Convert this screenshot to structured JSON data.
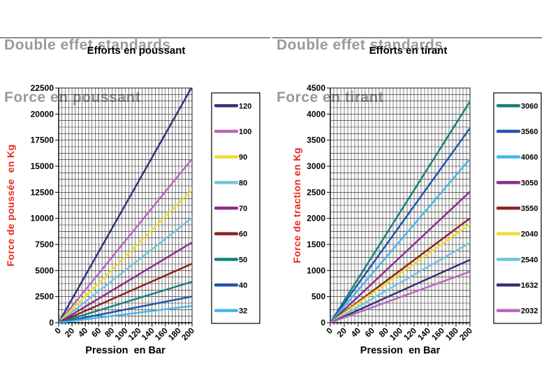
{
  "colors": {
    "header_gray": "#9a9a9a",
    "axis_title_red": "#E8281E",
    "grid": "#1a1a1a",
    "text": "#000000",
    "legend_border": "#000000"
  },
  "panels": [
    {
      "key": "push",
      "header": {
        "line1": "Double effet standards",
        "line2": "Force en poussant"
      },
      "title": "Efforts en poussant"
    },
    {
      "key": "pull",
      "header": {
        "line1": "Double effet standards",
        "line2": "Force en tirant"
      },
      "title": "Efforts en tirant"
    }
  ],
  "chart_data": [
    {
      "type": "line",
      "title": "Efforts en poussant",
      "xlabel": "Pression  en Bar",
      "ylabel": "Force de poussée  en Kg",
      "xlim": [
        0,
        200
      ],
      "ylim": [
        0,
        22500
      ],
      "x_ticks": [
        0,
        20,
        40,
        60,
        80,
        100,
        120,
        140,
        160,
        180,
        200
      ],
      "y_ticks": [
        0,
        2500,
        5000,
        7500,
        10000,
        12500,
        15000,
        17500,
        20000,
        22500
      ],
      "x_minor_step": 5,
      "y_minor_step": 625,
      "grid": true,
      "legend_position": "right",
      "x": [
        0,
        200
      ],
      "series": [
        {
          "name": "120",
          "color": "#333377",
          "values": [
            0,
            22619
          ]
        },
        {
          "name": "100",
          "color": "#BB66BB",
          "values": [
            0,
            15708
          ]
        },
        {
          "name": "90",
          "color": "#EEDD33",
          "values": [
            0,
            12723
          ]
        },
        {
          "name": "80",
          "color": "#6FC8D8",
          "values": [
            0,
            10053
          ]
        },
        {
          "name": "70",
          "color": "#8C2D8C",
          "values": [
            0,
            7697
          ]
        },
        {
          "name": "60",
          "color": "#8C2420",
          "values": [
            0,
            5655
          ]
        },
        {
          "name": "50",
          "color": "#17807A",
          "values": [
            0,
            3927
          ]
        },
        {
          "name": "40",
          "color": "#2255AA",
          "values": [
            0,
            2513
          ]
        },
        {
          "name": "32",
          "color": "#44B8EE",
          "values": [
            0,
            1608
          ]
        }
      ]
    },
    {
      "type": "line",
      "title": "Efforts en tirant",
      "xlabel": "Pression  en Bar",
      "ylabel": "Force de traction en Kg",
      "xlim": [
        0,
        200
      ],
      "ylim": [
        0,
        4500
      ],
      "x_ticks": [
        0,
        20,
        40,
        60,
        80,
        100,
        120,
        140,
        160,
        180,
        200
      ],
      "y_ticks": [
        0,
        500,
        1000,
        1500,
        2000,
        2500,
        3000,
        3500,
        4000,
        4500
      ],
      "x_minor_step": 5,
      "y_minor_step": 125,
      "grid": true,
      "legend_position": "right",
      "x": [
        0,
        200
      ],
      "series": [
        {
          "name": "3060",
          "color": "#17807A",
          "values": [
            0,
            4241
          ]
        },
        {
          "name": "3560",
          "color": "#2255AA",
          "values": [
            0,
            3731
          ]
        },
        {
          "name": "4060",
          "color": "#44B8EE",
          "values": [
            0,
            3142
          ]
        },
        {
          "name": "3050",
          "color": "#8C2D8C",
          "values": [
            0,
            2513
          ]
        },
        {
          "name": "3550",
          "color": "#8C2420",
          "values": [
            0,
            2003
          ]
        },
        {
          "name": "2040",
          "color": "#EEDD33",
          "values": [
            0,
            1885
          ]
        },
        {
          "name": "2540",
          "color": "#6FC8D8",
          "values": [
            0,
            1532
          ]
        },
        {
          "name": "1632",
          "color": "#333377",
          "values": [
            0,
            1206
          ]
        },
        {
          "name": "2032",
          "color": "#BB66BB",
          "values": [
            0,
            980
          ]
        }
      ]
    }
  ]
}
